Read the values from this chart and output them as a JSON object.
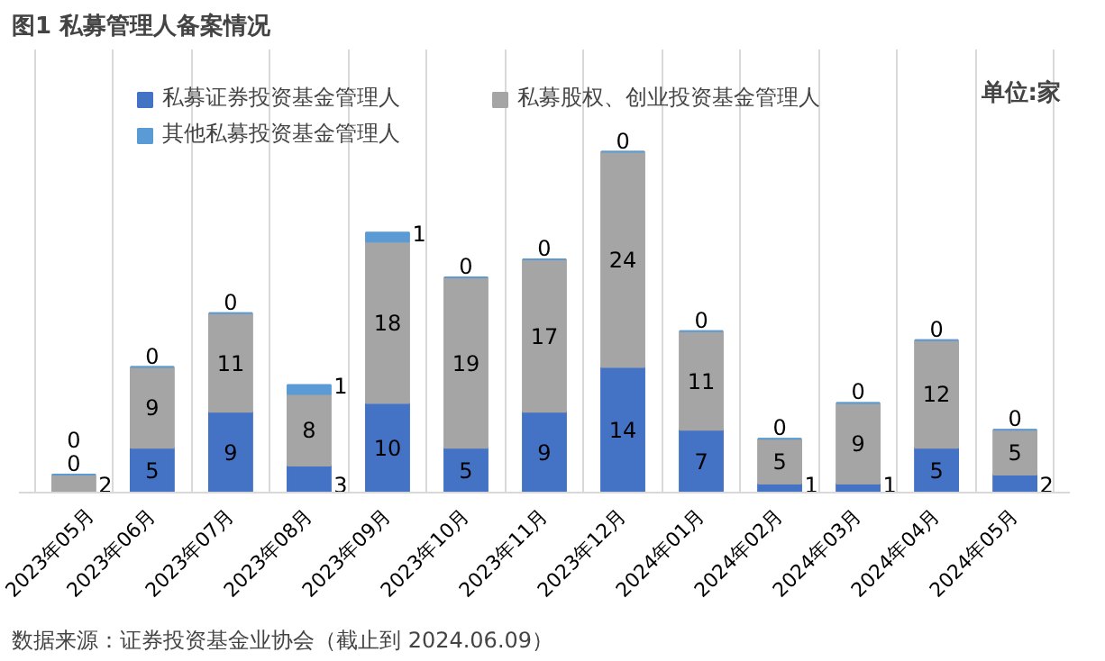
{
  "chart_data": {
    "type": "bar",
    "title": "图1 私募管理人备案情况",
    "stacked": true,
    "data_labels": true,
    "grid": "x",
    "legend": "top",
    "categories": [
      "2023年05月",
      "2023年06月",
      "2023年07月",
      "2023年08月",
      "2023年09月",
      "2023年10月",
      "2023年11月",
      "2023年12月",
      "2024年01月",
      "2024年02月",
      "2024年03月",
      "2024年04月",
      "2024年05月"
    ],
    "series": [
      {
        "name": "私募证券投资基金管理人",
        "color": "#4472c4",
        "values": [
          0,
          5,
          9,
          3,
          10,
          5,
          9,
          14,
          7,
          1,
          1,
          5,
          2
        ]
      },
      {
        "name": "私募股权、创业投资基金管理人",
        "color": "#a5a5a5",
        "values": [
          2,
          9,
          11,
          8,
          18,
          19,
          17,
          24,
          11,
          5,
          9,
          12,
          5
        ]
      },
      {
        "name": "其他私募投资基金管理人",
        "color": "#5b9bd5",
        "values": [
          0,
          0,
          0,
          1,
          1,
          0,
          0,
          0,
          0,
          0,
          0,
          0,
          0
        ]
      }
    ],
    "annotations": [
      "单位:家",
      "数据来源：证券投资基金业协会（截止到 2024.06.09）"
    ]
  }
}
